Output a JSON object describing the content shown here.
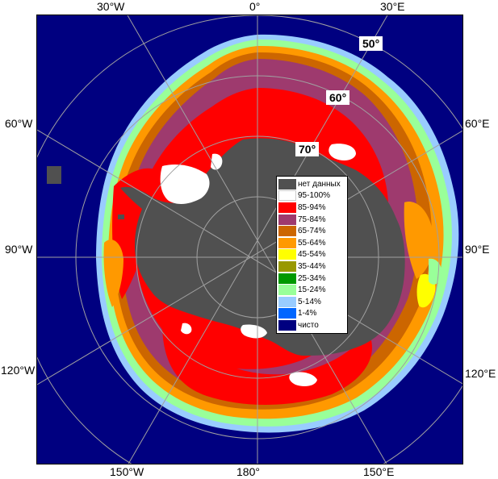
{
  "edge_labels": {
    "top": [
      "30°W",
      "0°",
      "30°E"
    ],
    "bottom": [
      "150°W",
      "180°",
      "150°E"
    ],
    "left": [
      "60°W",
      "90°W",
      "120°W"
    ],
    "right": [
      "60°E",
      "90°E",
      "120°E"
    ]
  },
  "latitude_labels": [
    "50°",
    "60°",
    "70°"
  ],
  "legend": [
    {
      "label": "нет данных",
      "color": "#505050"
    },
    {
      "label": "95-100%",
      "color": "#ffffff"
    },
    {
      "label": "85-94%",
      "color": "#ff0000"
    },
    {
      "label": "75-84%",
      "color": "#9e3a6e"
    },
    {
      "label": "65-74%",
      "color": "#cc6600"
    },
    {
      "label": "55-64%",
      "color": "#ff9900"
    },
    {
      "label": "45-54%",
      "color": "#ffff00"
    },
    {
      "label": "35-44%",
      "color": "#999900"
    },
    {
      "label": "25-34%",
      "color": "#009900"
    },
    {
      "label": "15-24%",
      "color": "#99ff99"
    },
    {
      "label": "5-14%",
      "color": "#99ccff"
    },
    {
      "label": "1-4%",
      "color": "#0066ff"
    },
    {
      "label": "чисто",
      "color": "#000080"
    }
  ]
}
